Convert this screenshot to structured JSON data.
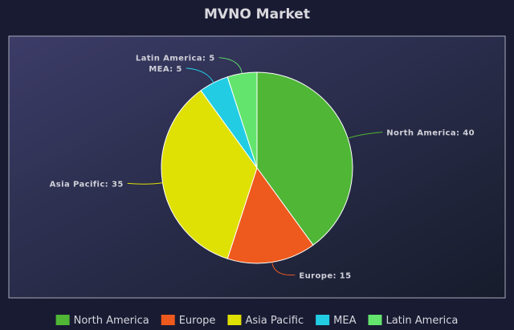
{
  "chart_data": {
    "type": "pie",
    "title": "MVNO Market",
    "legend_position": "bottom",
    "label_format": "{name}: {value}",
    "slices": [
      {
        "name": "North America",
        "value": 40,
        "color": "#4fb636"
      },
      {
        "name": "Europe",
        "value": 15,
        "color": "#ee5a1d"
      },
      {
        "name": "Asia Pacific",
        "value": 35,
        "color": "#dfe003"
      },
      {
        "name": "MEA",
        "value": 5,
        "color": "#22cde4"
      },
      {
        "name": "Latin America",
        "value": 5,
        "color": "#63e46c"
      }
    ]
  },
  "colors": {
    "background_outer": "#191b33",
    "plot_gradient_start": "#3c3c68",
    "plot_gradient_end": "#161c2b",
    "plot_border": "#a7a9b8",
    "slice_stroke": "#ffffff"
  }
}
